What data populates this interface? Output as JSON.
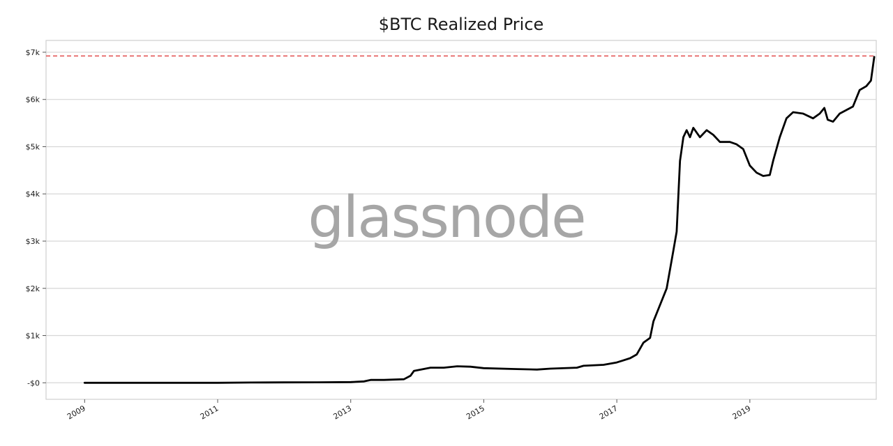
{
  "chart_data": {
    "type": "line",
    "title": "$BTC Realized Price",
    "xlabel": "",
    "ylabel": "",
    "watermark": "glassnode",
    "x_tick_labels": [
      "2009",
      "2011",
      "2013",
      "2015",
      "2017",
      "2019"
    ],
    "x_ticks": [
      2009,
      2011,
      2013,
      2015,
      2017,
      2019
    ],
    "y_tick_labels": [
      "-$0",
      "$1k",
      "$2k",
      "$3k",
      "$4k",
      "$5k",
      "$6k",
      "$7k"
    ],
    "y_ticks": [
      0,
      1000,
      2000,
      3000,
      4000,
      5000,
      6000,
      7000
    ],
    "xlim": [
      2008.42,
      2020.9
    ],
    "ylim": [
      -350,
      7250
    ],
    "grid": "horizontal",
    "reference_line": {
      "y": 6920,
      "style": "dashed",
      "color": "#e04040"
    },
    "series": [
      {
        "color": "#000000",
        "points": [
          [
            2009.0,
            0
          ],
          [
            2010.0,
            0
          ],
          [
            2011.0,
            0
          ],
          [
            2011.5,
            5
          ],
          [
            2012.0,
            8
          ],
          [
            2012.5,
            10
          ],
          [
            2013.0,
            15
          ],
          [
            2013.2,
            30
          ],
          [
            2013.3,
            60
          ],
          [
            2013.5,
            60
          ],
          [
            2013.8,
            75
          ],
          [
            2013.9,
            150
          ],
          [
            2013.95,
            250
          ],
          [
            2014.2,
            320
          ],
          [
            2014.4,
            320
          ],
          [
            2014.6,
            350
          ],
          [
            2014.8,
            340
          ],
          [
            2015.0,
            310
          ],
          [
            2015.5,
            290
          ],
          [
            2015.8,
            280
          ],
          [
            2016.0,
            300
          ],
          [
            2016.4,
            320
          ],
          [
            2016.5,
            360
          ],
          [
            2016.8,
            380
          ],
          [
            2017.0,
            430
          ],
          [
            2017.2,
            520
          ],
          [
            2017.3,
            600
          ],
          [
            2017.4,
            850
          ],
          [
            2017.5,
            950
          ],
          [
            2017.55,
            1300
          ],
          [
            2017.65,
            1650
          ],
          [
            2017.75,
            2000
          ],
          [
            2017.85,
            2800
          ],
          [
            2017.9,
            3200
          ],
          [
            2017.95,
            4700
          ],
          [
            2018.0,
            5200
          ],
          [
            2018.05,
            5350
          ],
          [
            2018.1,
            5200
          ],
          [
            2018.15,
            5400
          ],
          [
            2018.25,
            5200
          ],
          [
            2018.35,
            5350
          ],
          [
            2018.45,
            5250
          ],
          [
            2018.55,
            5100
          ],
          [
            2018.7,
            5100
          ],
          [
            2018.8,
            5050
          ],
          [
            2018.9,
            4950
          ],
          [
            2019.0,
            4600
          ],
          [
            2019.1,
            4450
          ],
          [
            2019.2,
            4380
          ],
          [
            2019.3,
            4400
          ],
          [
            2019.35,
            4700
          ],
          [
            2019.45,
            5200
          ],
          [
            2019.55,
            5600
          ],
          [
            2019.65,
            5730
          ],
          [
            2019.8,
            5700
          ],
          [
            2019.95,
            5600
          ],
          [
            2020.05,
            5700
          ],
          [
            2020.12,
            5820
          ],
          [
            2020.17,
            5570
          ],
          [
            2020.25,
            5530
          ],
          [
            2020.35,
            5700
          ],
          [
            2020.55,
            5850
          ],
          [
            2020.65,
            6200
          ],
          [
            2020.75,
            6280
          ],
          [
            2020.82,
            6400
          ],
          [
            2020.87,
            6900
          ]
        ]
      }
    ]
  }
}
